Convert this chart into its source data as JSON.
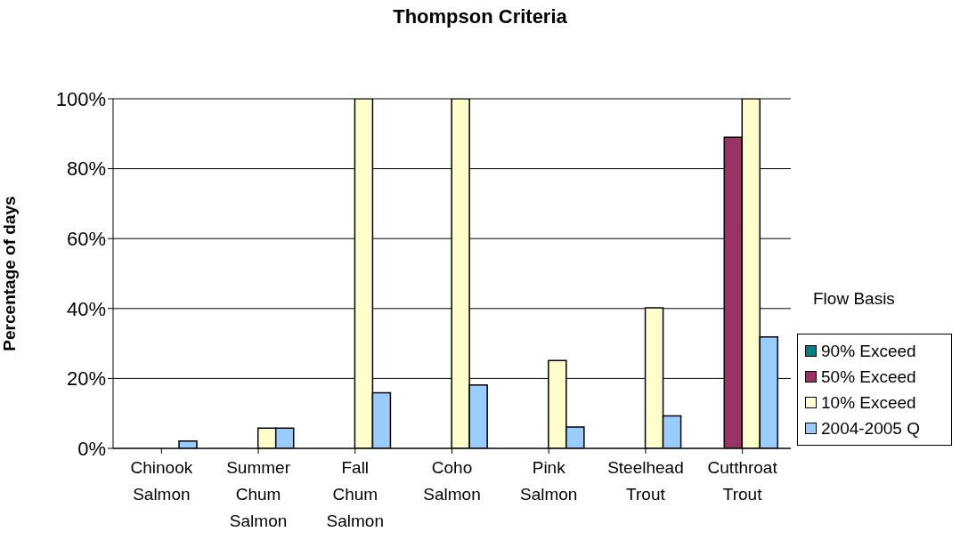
{
  "chart_data": {
    "type": "bar",
    "title": "Thompson Criteria",
    "ylabel": "Percentage of days",
    "legend_title": "Flow Basis",
    "categories": [
      "Chinook Salmon",
      "Summer Chum Salmon",
      "Fall Chum Salmon",
      "Coho Salmon",
      "Pink Salmon",
      "Steelhead Trout",
      "Cutthroat Trout"
    ],
    "series": [
      {
        "name": "90% Exceed",
        "color": "#008080",
        "values": [
          0,
          0,
          0,
          0,
          0,
          0,
          0
        ]
      },
      {
        "name": "50% Exceed",
        "color": "#993366",
        "values": [
          0,
          0,
          0,
          0,
          0,
          0,
          89
        ]
      },
      {
        "name": "10% Exceed",
        "color": "#ffffcc",
        "values": [
          0,
          5.8,
          100,
          100,
          25.1,
          40.2,
          100
        ]
      },
      {
        "name": "2004-2005 Q",
        "color": "#99ccff",
        "values": [
          2.1,
          5.8,
          15.9,
          18.1,
          6.1,
          9.3,
          31.9
        ]
      }
    ],
    "ylim": [
      0,
      100
    ],
    "yticks": [
      {
        "value": 0,
        "label": "0%"
      },
      {
        "value": 20,
        "label": "20%"
      },
      {
        "value": 40,
        "label": "40%"
      },
      {
        "value": 60,
        "label": "60%"
      },
      {
        "value": 80,
        "label": "80%"
      },
      {
        "value": 100,
        "label": "100%"
      }
    ],
    "grid": "y",
    "legend": "right"
  }
}
